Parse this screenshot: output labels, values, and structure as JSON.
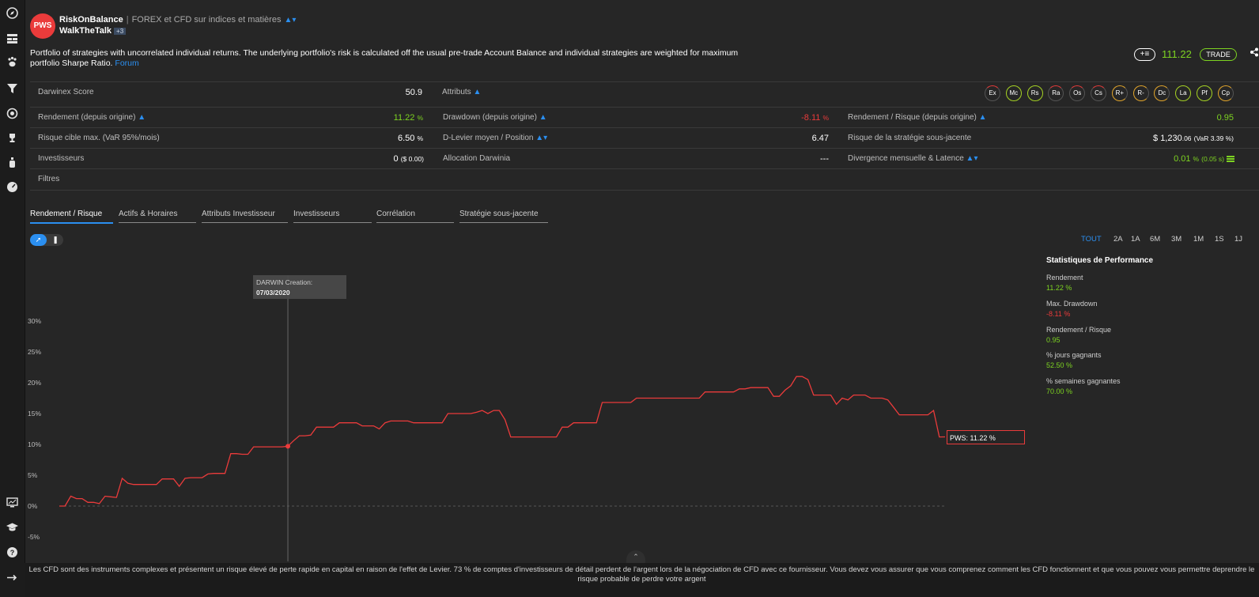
{
  "sidebar": {
    "top_icons": [
      "compass-icon",
      "dashboard-icon",
      "paw-icon",
      "filter-icon",
      "coins-icon",
      "trophy-icon",
      "bottle-icon",
      "gauge-icon"
    ],
    "bottom_icons": [
      "chart-screen-icon",
      "graduation-cap-icon",
      "help-icon",
      "arrow-right-icon"
    ]
  },
  "header": {
    "logo_text": "PWS",
    "name": "RiskOnBalance",
    "subtitle": "FOREX et CFD sur indices et matières",
    "author": "WalkTheTalk",
    "author_badge": "+3",
    "description": "Portfolio of strategies with uncorrelated individual returns. The underlying portfolio's risk is calculated off the usual pre-trade Account Balance and individual strategies are weighted for maximum portfolio Sharpe Ratio.",
    "forum_link": "Forum",
    "price": "111.22",
    "trade_label": "TRADE"
  },
  "stats": {
    "darwinex_score_label": "Darwinex Score",
    "darwinex_score_value": "50.9",
    "attributes_label": "Attributs",
    "attributes": [
      {
        "code": "Ex",
        "level": "r"
      },
      {
        "code": "Mc",
        "level": "g"
      },
      {
        "code": "Rs",
        "level": "g"
      },
      {
        "code": "Ra",
        "level": "r"
      },
      {
        "code": "Os",
        "level": "r"
      },
      {
        "code": "Cs",
        "level": "r"
      },
      {
        "code": "R+",
        "level": "o"
      },
      {
        "code": "R-",
        "level": "o"
      },
      {
        "code": "Dc",
        "level": "o"
      },
      {
        "code": "La",
        "level": "g"
      },
      {
        "code": "Pf",
        "level": "g"
      },
      {
        "code": "Cp",
        "level": "o"
      }
    ],
    "rendement_label": "Rendement (depuis origine)",
    "rendement_value": "11.22",
    "rendement_unit": "%",
    "drawdown_label": "Drawdown (depuis origine)",
    "drawdown_value": "-8.11",
    "drawdown_unit": "%",
    "rr_label": "Rendement / Risque (depuis origine)",
    "rr_value": "0.95",
    "risque_label": "Risque cible max. (VaR 95%/mois)",
    "risque_value": "6.50",
    "risque_unit": "%",
    "levier_label": "D-Levier moyen / Position",
    "levier_value": "6.47",
    "strat_risk_label": "Risque de la stratégie sous-jacente",
    "strat_risk_value": "$ 1,230",
    "strat_risk_dec": ".06",
    "strat_risk_var": "(VaR 3.39 %)",
    "investisseurs_label": "Investisseurs",
    "investisseurs_value": "0",
    "investisseurs_amount": "($ 0.00)",
    "allocation_label": "Allocation Darwinia",
    "allocation_value": "---",
    "divergence_label": "Divergence mensuelle & Latence",
    "divergence_value": "0.01",
    "divergence_unit": "%",
    "divergence_latency": "(0.05 s)",
    "filtres_label": "Filtres"
  },
  "tabs": [
    "Rendement / Risque",
    "Actifs & Horaires",
    "Attributs Investisseur",
    "Investisseurs",
    "Corrélation",
    "Stratégie sous-jacente"
  ],
  "periods": [
    "TOUT",
    "2A",
    "1A",
    "6M",
    "3M",
    "1M",
    "1S",
    "1J"
  ],
  "active_period": "TOUT",
  "perf": {
    "title": "Statistiques de Performance",
    "items": [
      {
        "label": "Rendement",
        "value": "11.22 %",
        "color": "#7dd321"
      },
      {
        "label": "Max. Drawdown",
        "value": "-8.11 %",
        "color": "#ea3b3b"
      },
      {
        "label": "Rendement / Risque",
        "value": "0.95",
        "color": "#7dd321"
      },
      {
        "label": "% jours gagnants",
        "value": "52.50 %",
        "color": "#7dd321"
      },
      {
        "label": "% semaines gagnantes",
        "value": "70.00 %",
        "color": "#7dd321"
      }
    ]
  },
  "tooltip": {
    "title": "DARWIN Creation:",
    "date": "07/03/2020"
  },
  "end_label": "PWS: 11.22 %",
  "footer": "Les CFD sont des instruments complexes et présentent un risque élevé de perte rapide en capital en raison de l'effet de Levier. 73 % de comptes d'investisseurs de détail perdent de l'argent lors de la négociation de CFD avec ce fournisseur. Vous devez vous assurer que vous comprenez comment les CFD fonctionnent et que vous pouvez vous permettre deprendre le risque probable de perdre votre argent",
  "colors": {
    "accent": "#2b8ff0",
    "line": "#ea3b3b",
    "positive": "#7dd321",
    "negative": "#ea3b3b"
  },
  "chart_data": {
    "type": "line",
    "series": [
      {
        "name": "PWS",
        "color": "#ea3b3b",
        "values": [
          0.0,
          0.0,
          1.6,
          1.2,
          1.2,
          0.6,
          0.6,
          0.4,
          1.6,
          1.5,
          1.4,
          4.5,
          3.7,
          3.5,
          3.5,
          3.5,
          3.5,
          3.5,
          4.4,
          4.4,
          4.4,
          3.2,
          4.5,
          4.6,
          4.6,
          4.6,
          5.2,
          5.3,
          5.3,
          5.3,
          8.5,
          8.5,
          8.4,
          8.4,
          9.6,
          9.6,
          9.6,
          9.6,
          9.6,
          9.6,
          9.7,
          10.6,
          11.4,
          11.4,
          11.5,
          12.8,
          12.8,
          12.8,
          12.8,
          13.5,
          13.5,
          13.5,
          13.5,
          13.0,
          13.0,
          13.0,
          12.5,
          13.5,
          13.8,
          13.8,
          13.8,
          13.8,
          13.5,
          13.5,
          13.5,
          13.5,
          13.5,
          13.5,
          15.0,
          15.0,
          15.0,
          15.0,
          15.0,
          15.2,
          15.5,
          15.0,
          15.5,
          15.5,
          14.0,
          11.2,
          11.2,
          11.2,
          11.2,
          11.2,
          11.2,
          11.2,
          11.2,
          11.2,
          12.8,
          12.8,
          13.5,
          13.5,
          13.5,
          13.5,
          13.5,
          16.8,
          16.8,
          16.8,
          16.8,
          16.8,
          16.8,
          17.5,
          17.5,
          17.5,
          17.5,
          17.5,
          17.5,
          17.5,
          17.5,
          17.5,
          17.5,
          17.5,
          17.5,
          18.5,
          18.5,
          18.5,
          18.5,
          18.5,
          18.5,
          19.0,
          19.0,
          19.2,
          19.2,
          19.2,
          19.2,
          17.8,
          17.8,
          18.8,
          19.5,
          21.0,
          21.0,
          20.5,
          18.0,
          18.0,
          18.0,
          18.0,
          16.5,
          17.5,
          17.2,
          18.0,
          18.0,
          18.0,
          17.5,
          17.5,
          17.5,
          17.2,
          16.0,
          14.8,
          14.8,
          14.8,
          14.8,
          14.8,
          14.8,
          15.5,
          11.2,
          11.22
        ]
      }
    ],
    "xlabel": "",
    "ylabel": "",
    "ylim": [
      -7,
      33
    ],
    "yticks": [
      "30%",
      "25%",
      "20%",
      "15%",
      "10%",
      "5%",
      "0%",
      "-5%"
    ],
    "ytick_values": [
      30,
      25,
      20,
      15,
      10,
      5,
      0,
      -5
    ],
    "creation_index": 40,
    "grid": false
  }
}
